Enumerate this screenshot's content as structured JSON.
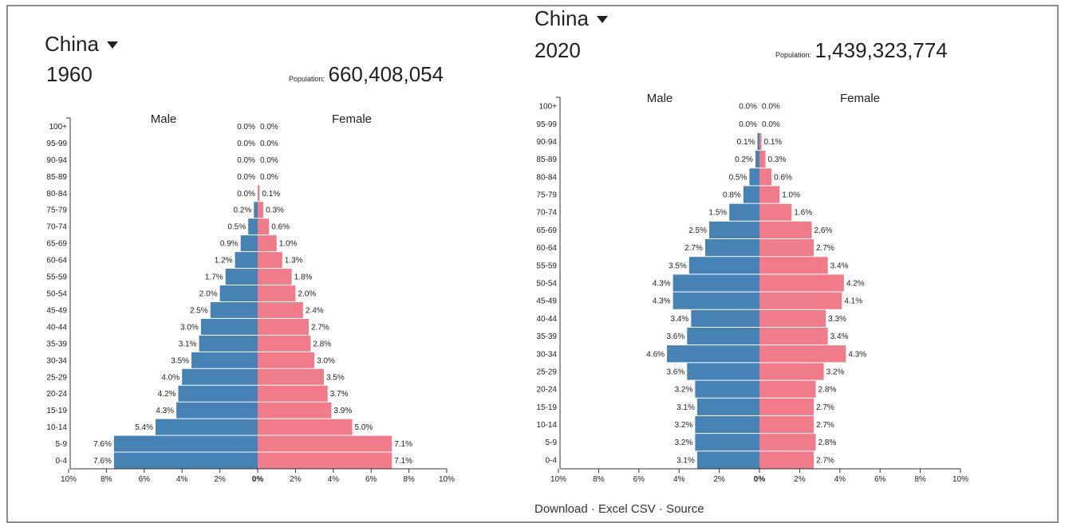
{
  "left": {
    "country": "China",
    "year": "1960",
    "population_label": "Population:",
    "population_value": "660,408,054"
  },
  "right": {
    "country": "China",
    "year": "2020",
    "population_label": "Population:",
    "population_value": "1,439,323,774"
  },
  "footer_text": "Download · Excel CSV · Source",
  "colors": {
    "male": "#4682b4",
    "female": "#f07c8a"
  },
  "chart_data": [
    {
      "type": "bar",
      "orientation": "horizontal-population-pyramid",
      "year": "1960",
      "male_label": "Male",
      "female_label": "Female",
      "categories": [
        "100+",
        "95-99",
        "90-94",
        "85-89",
        "80-84",
        "75-79",
        "70-74",
        "65-69",
        "60-64",
        "55-59",
        "50-54",
        "45-49",
        "40-44",
        "35-39",
        "30-34",
        "25-29",
        "20-24",
        "15-19",
        "10-14",
        "5-9",
        "0-4"
      ],
      "series": [
        {
          "name": "Male",
          "values": [
            0.0,
            0.0,
            0.0,
            0.0,
            0.0,
            0.2,
            0.5,
            0.9,
            1.2,
            1.7,
            2.0,
            2.5,
            3.0,
            3.1,
            3.5,
            4.0,
            4.2,
            4.3,
            5.4,
            7.6,
            7.6
          ]
        },
        {
          "name": "Female",
          "values": [
            0.0,
            0.0,
            0.0,
            0.0,
            0.1,
            0.3,
            0.6,
            1.0,
            1.3,
            1.8,
            2.0,
            2.4,
            2.7,
            2.8,
            3.0,
            3.5,
            3.7,
            3.9,
            5.0,
            7.1,
            7.1
          ]
        }
      ],
      "x_ticks": [
        "10%",
        "8%",
        "6%",
        "4%",
        "2%",
        "0%",
        "2%",
        "4%",
        "6%",
        "8%",
        "10%"
      ],
      "xlim": [
        -10,
        10
      ]
    },
    {
      "type": "bar",
      "orientation": "horizontal-population-pyramid",
      "year": "2020",
      "male_label": "Male",
      "female_label": "Female",
      "categories": [
        "100+",
        "95-99",
        "90-94",
        "85-89",
        "80-84",
        "75-79",
        "70-74",
        "65-69",
        "60-64",
        "55-59",
        "50-54",
        "45-49",
        "40-44",
        "35-39",
        "30-34",
        "25-29",
        "20-24",
        "15-19",
        "10-14",
        "5-9",
        "0-4"
      ],
      "series": [
        {
          "name": "Male",
          "values": [
            0.0,
            0.0,
            0.1,
            0.2,
            0.5,
            0.8,
            1.5,
            2.5,
            2.7,
            3.5,
            4.3,
            4.3,
            3.4,
            3.6,
            4.6,
            3.6,
            3.2,
            3.1,
            3.2,
            3.2,
            3.1
          ]
        },
        {
          "name": "Female",
          "values": [
            0.0,
            0.0,
            0.1,
            0.3,
            0.6,
            1.0,
            1.6,
            2.6,
            2.7,
            3.4,
            4.2,
            4.1,
            3.3,
            3.4,
            4.3,
            3.2,
            2.8,
            2.7,
            2.7,
            2.8,
            2.7
          ]
        }
      ],
      "x_ticks": [
        "10%",
        "8%",
        "6%",
        "4%",
        "2%",
        "0%",
        "2%",
        "4%",
        "6%",
        "8%",
        "10%"
      ],
      "xlim": [
        -10,
        10
      ]
    }
  ]
}
